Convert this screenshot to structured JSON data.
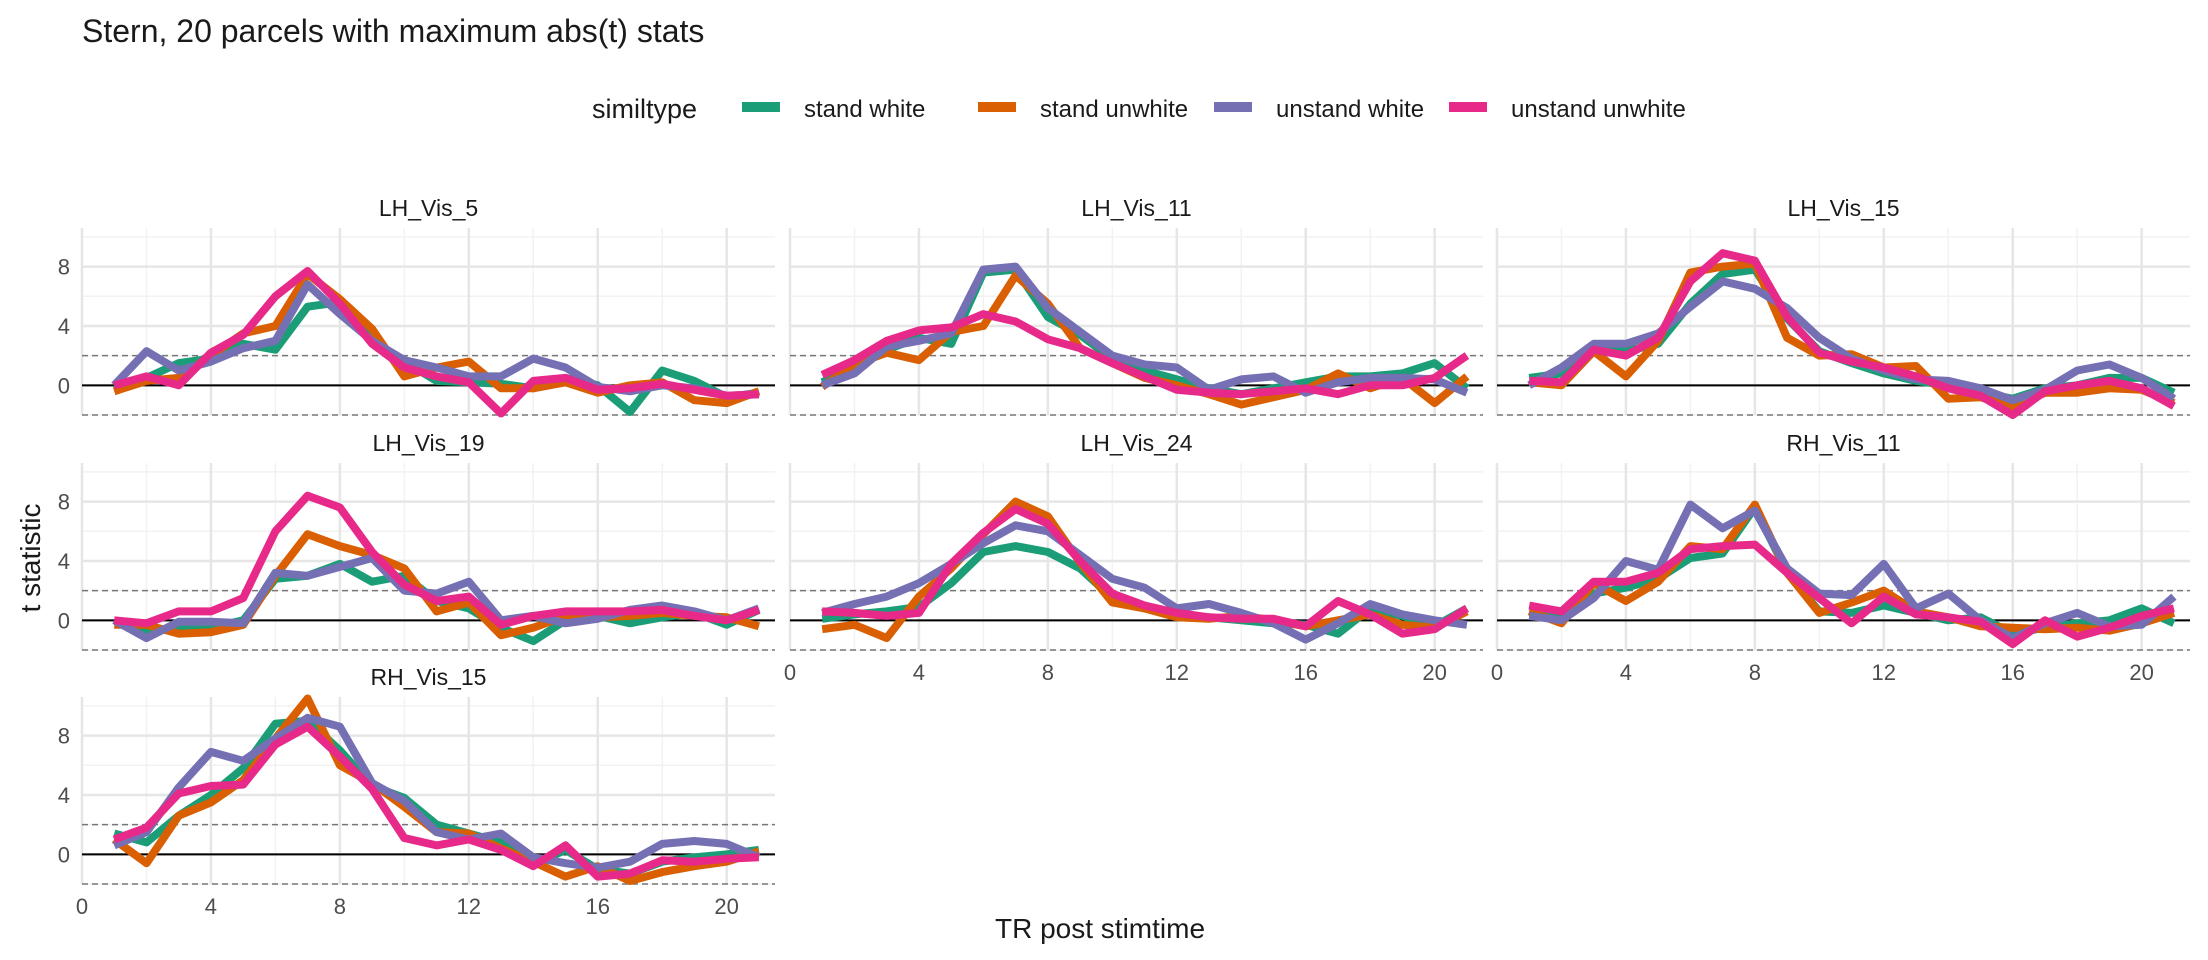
{
  "title": "Stern, 20 parcels with maximum abs(t) stats",
  "legend": {
    "title": "similtype",
    "placement": "top",
    "entries": [
      {
        "name": "stand white",
        "color": "#1b9e77"
      },
      {
        "name": "stand unwhite",
        "color": "#d95f02"
      },
      {
        "name": "unstand white",
        "color": "#7570b3"
      },
      {
        "name": "unstand unwhite",
        "color": "#e7298a"
      }
    ]
  },
  "chart_data": {
    "type": "line",
    "title": "Stern, 20 parcels with maximum abs(t) stats",
    "xlabel": "TR post stimtime",
    "ylabel": "t statistic",
    "xlim": [
      0,
      21.5
    ],
    "ylim": [
      -2.0,
      10.6
    ],
    "x_ticks": [
      0,
      4,
      8,
      12,
      16,
      20
    ],
    "y_ticks": [
      0,
      4,
      8
    ],
    "grid": true,
    "reference_lines": {
      "solid": [
        0
      ],
      "dashed": [
        2,
        -2
      ]
    },
    "x": [
      1,
      2,
      3,
      4,
      5,
      6,
      7,
      8,
      9,
      10,
      11,
      12,
      13,
      14,
      15,
      16,
      17,
      18,
      19,
      20,
      21
    ],
    "series_names": [
      "stand white",
      "stand unwhite",
      "unstand white",
      "unstand unwhite"
    ],
    "panels": [
      {
        "label": "LH_Vis_5",
        "series": [
          {
            "name": "stand white",
            "values": [
              -0.3,
              0.5,
              1.5,
              1.8,
              2.8,
              2.4,
              5.3,
              5.6,
              3.0,
              1.6,
              0.3,
              0.2,
              0.1,
              -0.2,
              0.5,
              0.0,
              -1.8,
              1.0,
              0.3,
              -0.8,
              -0.5
            ]
          },
          {
            "name": "stand unwhite",
            "values": [
              -0.4,
              0.3,
              0.5,
              2.0,
              3.5,
              4.0,
              7.5,
              5.8,
              3.8,
              0.6,
              1.2,
              1.6,
              -0.2,
              -0.2,
              0.2,
              -0.5,
              0.0,
              0.2,
              -1.0,
              -1.2,
              -0.4
            ]
          },
          {
            "name": "unstand white",
            "values": [
              0.0,
              2.3,
              1.0,
              1.6,
              2.5,
              3.0,
              6.8,
              4.8,
              3.0,
              1.7,
              1.2,
              0.6,
              0.6,
              1.8,
              1.2,
              -0.1,
              -0.4,
              0.0,
              -0.2,
              -0.7,
              -0.6
            ]
          },
          {
            "name": "unstand unwhite",
            "values": [
              0.0,
              0.6,
              0.0,
              2.2,
              3.4,
              6.0,
              7.7,
              5.5,
              2.8,
              1.2,
              0.6,
              0.2,
              -1.9,
              0.3,
              0.5,
              -0.3,
              -0.2,
              0.1,
              -0.3,
              -0.7,
              -0.6
            ]
          }
        ]
      },
      {
        "label": "LH_Vis_11",
        "series": [
          {
            "name": "stand white",
            "values": [
              0.2,
              1.2,
              2.4,
              3.2,
              2.8,
              7.6,
              7.8,
              4.6,
              3.4,
              1.8,
              1.0,
              0.4,
              -0.2,
              -0.6,
              -0.2,
              0.2,
              0.6,
              0.6,
              0.8,
              1.5,
              -0.2
            ]
          },
          {
            "name": "stand unwhite",
            "values": [
              -0.1,
              1.4,
              2.2,
              1.7,
              3.6,
              4.0,
              7.4,
              5.5,
              2.5,
              1.5,
              0.5,
              0.0,
              -0.6,
              -1.3,
              -0.8,
              -0.3,
              0.8,
              -0.2,
              0.5,
              -1.2,
              0.6
            ]
          },
          {
            "name": "unstand white",
            "values": [
              0.0,
              0.8,
              2.6,
              3.0,
              3.5,
              7.8,
              8.0,
              5.2,
              3.6,
              2.0,
              1.4,
              1.2,
              -0.3,
              0.4,
              0.6,
              -0.5,
              0.2,
              0.5,
              0.5,
              0.4,
              -0.5
            ]
          },
          {
            "name": "unstand unwhite",
            "values": [
              0.7,
              1.7,
              3.0,
              3.7,
              3.9,
              4.8,
              4.3,
              3.1,
              2.5,
              1.5,
              0.6,
              -0.3,
              -0.5,
              -0.6,
              -0.4,
              -0.2,
              -0.6,
              0.0,
              0.0,
              0.5,
              2.0
            ]
          }
        ]
      },
      {
        "label": "LH_Vis_15",
        "series": [
          {
            "name": "stand white",
            "values": [
              0.5,
              0.8,
              2.5,
              2.3,
              2.8,
              5.5,
              7.5,
              7.8,
              4.5,
              2.3,
              1.5,
              0.8,
              0.3,
              0.0,
              -0.5,
              -0.9,
              -0.2,
              0.0,
              0.5,
              0.5,
              -0.5
            ]
          },
          {
            "name": "stand unwhite",
            "values": [
              0.2,
              0.0,
              2.3,
              0.6,
              3.0,
              7.6,
              8.0,
              8.2,
              3.2,
              2.0,
              2.1,
              1.2,
              1.3,
              -0.9,
              -0.8,
              -1.5,
              -0.5,
              -0.5,
              -0.2,
              -0.3,
              -1.2
            ]
          },
          {
            "name": "unstand white",
            "values": [
              0.0,
              1.2,
              2.8,
              2.8,
              3.5,
              5.3,
              7.0,
              6.5,
              5.2,
              3.2,
              1.8,
              1.0,
              0.4,
              0.3,
              -0.2,
              -1.0,
              -0.3,
              1.0,
              1.4,
              0.5,
              -0.9
            ]
          },
          {
            "name": "unstand unwhite",
            "values": [
              0.3,
              0.2,
              2.4,
              2.0,
              3.2,
              7.0,
              8.9,
              8.4,
              4.6,
              2.2,
              1.6,
              1.2,
              0.6,
              -0.2,
              -0.7,
              -2.0,
              -0.4,
              0.0,
              0.3,
              -0.2,
              -1.4
            ]
          }
        ]
      },
      {
        "label": "LH_Vis_19",
        "series": [
          {
            "name": "stand white",
            "values": [
              0.0,
              -0.7,
              -0.6,
              -0.5,
              0.0,
              2.8,
              3.0,
              3.8,
              2.6,
              3.0,
              1.3,
              0.8,
              -0.5,
              -1.4,
              0.0,
              0.3,
              -0.2,
              0.2,
              0.5,
              -0.3,
              0.7
            ]
          },
          {
            "name": "stand unwhite",
            "values": [
              -0.3,
              -0.3,
              -0.9,
              -0.8,
              -0.3,
              3.0,
              5.8,
              5.0,
              4.4,
              3.5,
              0.6,
              1.2,
              -1.0,
              -0.5,
              0.3,
              0.2,
              0.3,
              0.5,
              0.3,
              0.2,
              -0.4
            ]
          },
          {
            "name": "unstand white",
            "values": [
              0.0,
              -1.2,
              -0.1,
              -0.1,
              -0.2,
              3.2,
              3.0,
              3.6,
              4.2,
              2.0,
              1.8,
              2.6,
              0.0,
              0.3,
              -0.2,
              0.1,
              0.7,
              1.0,
              0.6,
              0.0,
              0.8
            ]
          },
          {
            "name": "unstand unwhite",
            "values": [
              0.0,
              -0.2,
              0.6,
              0.6,
              1.5,
              6.0,
              8.4,
              7.6,
              4.6,
              2.4,
              1.3,
              1.6,
              -0.3,
              0.3,
              0.6,
              0.6,
              0.6,
              0.7,
              0.3,
              0.0,
              0.7
            ]
          }
        ]
      },
      {
        "label": "LH_Vis_24",
        "series": [
          {
            "name": "stand white",
            "values": [
              0.1,
              0.4,
              0.6,
              0.9,
              2.5,
              4.6,
              5.0,
              4.6,
              3.5,
              1.5,
              0.8,
              0.3,
              0.2,
              0.0,
              -0.2,
              -0.3,
              -0.9,
              0.8,
              0.3,
              -0.4,
              0.8
            ]
          },
          {
            "name": "stand unwhite",
            "values": [
              -0.6,
              -0.3,
              -1.2,
              1.6,
              3.5,
              5.8,
              8.0,
              7.0,
              3.9,
              1.2,
              0.8,
              0.2,
              0.1,
              0.3,
              0.0,
              -0.4,
              0.0,
              0.4,
              -0.3,
              -0.5,
              0.6
            ]
          },
          {
            "name": "unstand white",
            "values": [
              0.5,
              1.1,
              1.6,
              2.5,
              3.8,
              5.2,
              6.4,
              6.0,
              4.4,
              2.8,
              2.2,
              0.8,
              1.1,
              0.5,
              -0.2,
              -1.3,
              -0.2,
              1.1,
              0.4,
              0.0,
              -0.3
            ]
          },
          {
            "name": "unstand unwhite",
            "values": [
              0.6,
              0.5,
              0.3,
              0.5,
              3.8,
              5.9,
              7.5,
              6.5,
              4.0,
              1.8,
              1.0,
              0.5,
              0.2,
              0.1,
              0.1,
              -0.4,
              1.3,
              0.4,
              -0.9,
              -0.6,
              0.8
            ]
          }
        ]
      },
      {
        "label": "RH_Vis_11",
        "series": [
          {
            "name": "stand white",
            "values": [
              0.5,
              0.4,
              1.8,
              2.2,
              2.8,
              4.2,
              4.5,
              7.6,
              3.2,
              0.6,
              0.5,
              1.0,
              0.5,
              0.0,
              0.2,
              -0.9,
              -0.5,
              -0.2,
              0.0,
              0.8,
              -0.2
            ]
          },
          {
            "name": "stand unwhite",
            "values": [
              0.6,
              -0.2,
              2.5,
              1.3,
              2.6,
              5.0,
              4.8,
              7.8,
              3.2,
              0.5,
              1.2,
              2.0,
              0.6,
              0.2,
              -0.4,
              -0.5,
              -0.6,
              -0.5,
              -0.7,
              -0.2,
              0.5
            ]
          },
          {
            "name": "unstand white",
            "values": [
              0.3,
              0.0,
              1.5,
              4.0,
              3.4,
              7.8,
              6.2,
              7.4,
              3.5,
              1.8,
              1.7,
              3.8,
              0.8,
              1.8,
              0.0,
              -1.2,
              -0.2,
              0.5,
              -0.4,
              -0.3,
              1.6
            ]
          },
          {
            "name": "unstand unwhite",
            "values": [
              1.0,
              0.6,
              2.6,
              2.6,
              3.2,
              4.8,
              5.0,
              5.1,
              3.2,
              1.5,
              -0.2,
              1.6,
              0.4,
              0.2,
              -0.1,
              -1.6,
              0.0,
              -1.1,
              -0.5,
              0.3,
              0.8
            ]
          }
        ]
      },
      {
        "label": "RH_Vis_15",
        "series": [
          {
            "name": "stand white",
            "values": [
              1.4,
              0.8,
              2.6,
              4.0,
              5.8,
              8.8,
              9.0,
              7.0,
              4.6,
              3.8,
              2.0,
              1.4,
              0.8,
              -0.7,
              0.3,
              -1.0,
              -1.3,
              -0.5,
              -0.2,
              0.0,
              0.3
            ]
          },
          {
            "name": "stand unwhite",
            "values": [
              1.0,
              -0.6,
              2.6,
              3.5,
              5.0,
              7.8,
              10.5,
              6.0,
              4.8,
              3.2,
              1.5,
              1.4,
              0.4,
              -0.5,
              -1.5,
              -0.8,
              -1.8,
              -1.2,
              -0.8,
              -0.5,
              0.2
            ]
          },
          {
            "name": "unstand white",
            "values": [
              0.6,
              1.5,
              4.5,
              6.9,
              6.3,
              7.8,
              9.2,
              8.6,
              4.8,
              3.6,
              1.5,
              1.0,
              1.4,
              -0.2,
              -0.6,
              -0.9,
              -0.5,
              0.7,
              0.9,
              0.7,
              -0.2
            ]
          },
          {
            "name": "unstand unwhite",
            "values": [
              1.0,
              1.8,
              4.1,
              4.6,
              4.7,
              7.4,
              8.6,
              6.6,
              4.4,
              1.1,
              0.6,
              1.0,
              0.3,
              -0.8,
              0.6,
              -1.5,
              -1.3,
              -0.4,
              -0.5,
              -0.3,
              -0.2
            ]
          }
        ]
      }
    ]
  }
}
